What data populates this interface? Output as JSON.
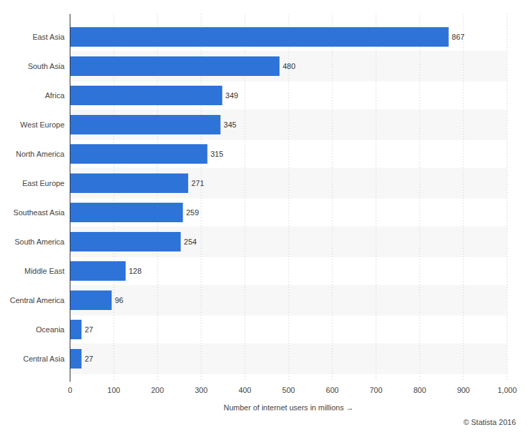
{
  "chart_data": {
    "type": "bar",
    "orientation": "horizontal",
    "categories": [
      "East Asia",
      "South Asia",
      "Africa",
      "West Europe",
      "North America",
      "East Europe",
      "Southeast Asia",
      "South America",
      "Middle East",
      "Central America",
      "Oceania",
      "Central Asia"
    ],
    "values": [
      867,
      480,
      349,
      345,
      315,
      271,
      259,
      254,
      128,
      96,
      27,
      27
    ],
    "color": "#2e73d8",
    "xlabel": "Number of internet users in millions",
    "xlim": [
      0,
      1000
    ],
    "xticks": [
      0,
      100,
      200,
      300,
      400,
      500,
      600,
      700,
      800,
      900,
      {
        "value": 1000,
        "label": "1,000"
      }
    ],
    "grid": true,
    "data_labels": true,
    "caption": "© Statista 2016"
  }
}
